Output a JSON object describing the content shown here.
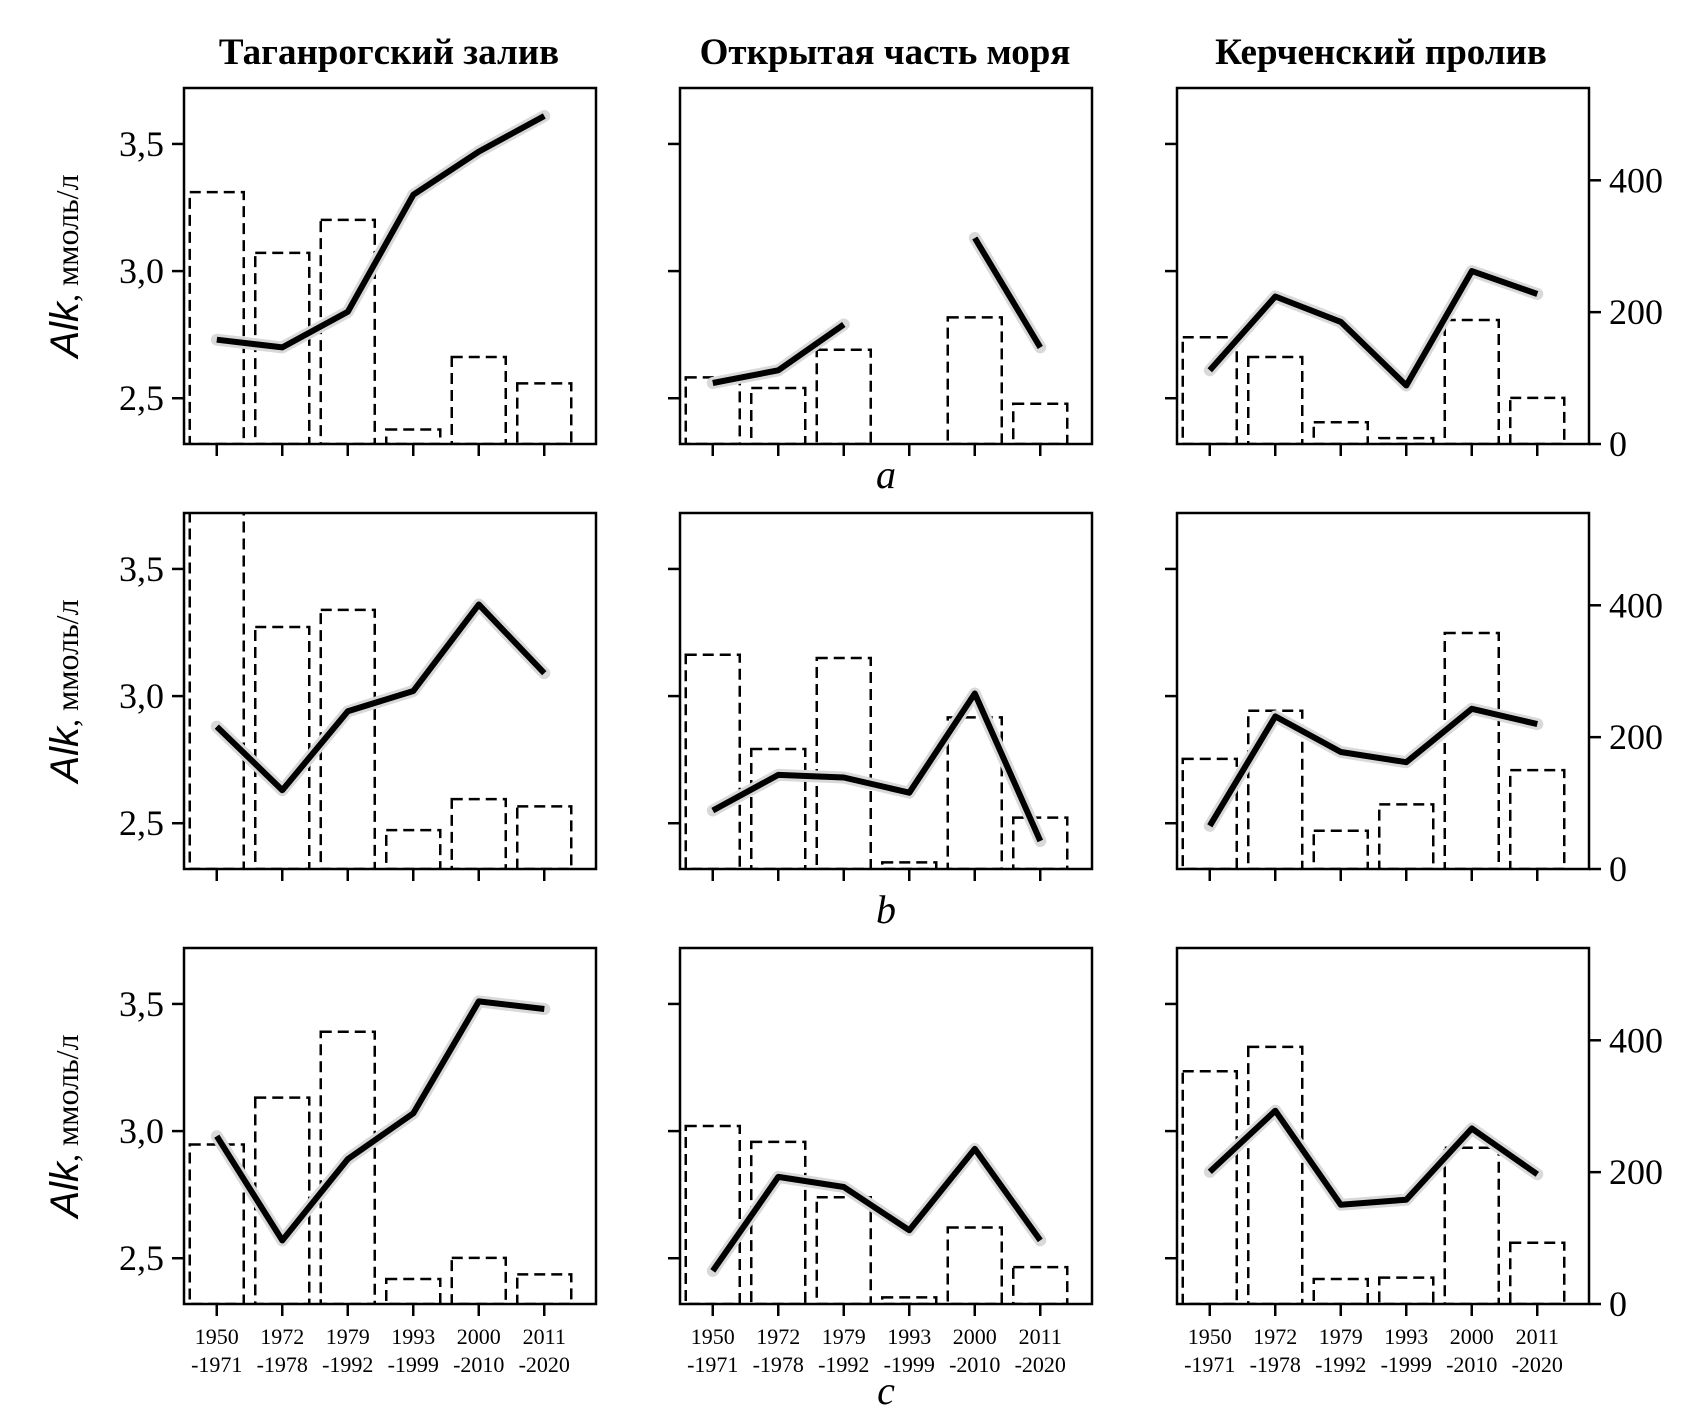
{
  "figure": {
    "column_titles": [
      "Таганрогский залив",
      "Открытая часть моря",
      "Керченский пролив"
    ],
    "row_labels": [
      "a",
      "b",
      "c"
    ],
    "ylabel": {
      "main": "Alk",
      "unit": ", ммоль/л"
    },
    "left_axis": {
      "min": 2.32,
      "max": 3.72,
      "ticks": [
        2.5,
        3.0,
        3.5
      ],
      "tick_labels": [
        "2,5",
        "3,0",
        "3,5"
      ]
    },
    "right_axis": {
      "min": 0,
      "max": 540,
      "ticks": [
        0,
        200,
        400
      ],
      "tick_labels": [
        "0",
        "200",
        "400"
      ]
    },
    "categories": [
      "1950 -1971",
      "1972 -1978",
      "1979 -1992",
      "1993 -1999",
      "2000 -2010",
      "2011 -2020"
    ],
    "category_lines": [
      [
        "1950",
        "-1971"
      ],
      [
        "1972",
        "-1978"
      ],
      [
        "1979",
        "-1992"
      ],
      [
        "1993",
        "-1999"
      ],
      [
        "2000",
        "-2010"
      ],
      [
        "2011",
        "-2020"
      ]
    ]
  },
  "chart_data": [
    {
      "type": "bar+line",
      "row": "a",
      "region": "Таганрогский залив",
      "bars_right_axis": [
        382,
        290,
        340,
        22,
        132,
        92
      ],
      "line_left_axis": [
        2.73,
        2.7,
        2.84,
        3.3,
        3.47,
        3.61
      ]
    },
    {
      "type": "bar+line",
      "row": "a",
      "region": "Открытая часть моря",
      "bars_right_axis": [
        101,
        85,
        143,
        0,
        192,
        61
      ],
      "line_left_axis": [
        2.56,
        2.61,
        2.79,
        null,
        3.13,
        2.7
      ]
    },
    {
      "type": "bar+line",
      "row": "a",
      "region": "Керченский пролив",
      "bars_right_axis": [
        162,
        132,
        33,
        9,
        188,
        70
      ],
      "line_left_axis": [
        2.61,
        2.9,
        2.8,
        2.55,
        3.0,
        2.91
      ]
    },
    {
      "type": "bar+line",
      "row": "b",
      "region": "Таганрогский залив",
      "bars_right_axis": [
        600,
        367,
        393,
        59,
        106,
        95
      ],
      "line_left_axis": [
        2.88,
        2.63,
        2.94,
        3.02,
        3.36,
        3.09
      ]
    },
    {
      "type": "bar+line",
      "row": "b",
      "region": "Открытая часть моря",
      "bars_right_axis": [
        325,
        182,
        320,
        10,
        230,
        78
      ],
      "line_left_axis": [
        2.55,
        2.69,
        2.68,
        2.62,
        3.01,
        2.43
      ]
    },
    {
      "type": "bar+line",
      "row": "b",
      "region": "Керченский пролив",
      "bars_right_axis": [
        167,
        240,
        58,
        98,
        358,
        150
      ],
      "line_left_axis": [
        2.49,
        2.92,
        2.78,
        2.74,
        2.95,
        2.89
      ]
    },
    {
      "type": "bar+line",
      "row": "c",
      "region": "Таганрогский залив",
      "bars_right_axis": [
        242,
        313,
        413,
        38,
        70,
        45
      ],
      "line_left_axis": [
        2.98,
        2.57,
        2.89,
        3.07,
        3.51,
        3.48
      ]
    },
    {
      "type": "bar+line",
      "row": "c",
      "region": "Открытая часть моря",
      "bars_right_axis": [
        270,
        246,
        162,
        10,
        116,
        56
      ],
      "line_left_axis": [
        2.45,
        2.82,
        2.78,
        2.61,
        2.93,
        2.57
      ]
    },
    {
      "type": "bar+line",
      "row": "c",
      "region": "Керченский пролив",
      "bars_right_axis": [
        353,
        390,
        38,
        40,
        237,
        93
      ],
      "line_left_axis": [
        2.84,
        3.08,
        2.71,
        2.73,
        3.01,
        2.83
      ]
    }
  ]
}
